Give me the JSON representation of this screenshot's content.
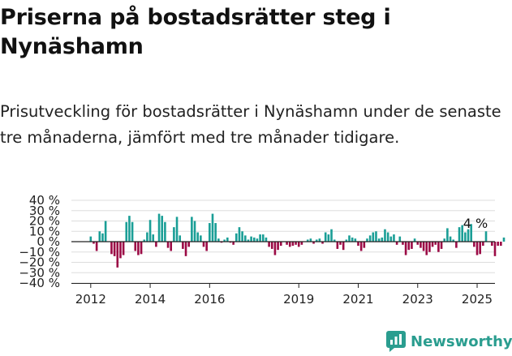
{
  "title": "Priserna på bostadsrätter steg i Nynäshamn",
  "subtitle": "Prisutveckling för bostadsrätter i Nynäshamn under de senaste tre månaderna, jämfört med tre månader tidigare.",
  "brand": "Newsworthy",
  "colors": {
    "positive": "#1a9e96",
    "negative": "#9b0a45",
    "grid": "#dddddd",
    "axis": "#222222"
  },
  "chart_data": {
    "type": "bar",
    "ylim": [
      -40,
      40
    ],
    "y_ticks": [
      -40,
      -30,
      -20,
      -10,
      0,
      10,
      20,
      30,
      40
    ],
    "y_tick_labels": [
      "−40 %",
      "−30 %",
      "−20 %",
      "−10 %",
      "0 %",
      "10 %",
      "20 %",
      "30 %",
      "40 %"
    ],
    "x_ticks": [
      2012,
      2014,
      2016,
      2019,
      2021,
      2023,
      2025
    ],
    "x_range": [
      2011.35,
      2025.6
    ],
    "annotation": {
      "text": "4 %",
      "x": 2025.0,
      "value": 4
    },
    "bars": [
      {
        "x": 2012.0,
        "v": 5
      },
      {
        "x": 2012.1,
        "v": -2
      },
      {
        "x": 2012.2,
        "v": -9
      },
      {
        "x": 2012.3,
        "v": 10
      },
      {
        "x": 2012.4,
        "v": 8
      },
      {
        "x": 2012.5,
        "v": 20
      },
      {
        "x": 2012.6,
        "v": 0
      },
      {
        "x": 2012.7,
        "v": -12
      },
      {
        "x": 2012.8,
        "v": -14
      },
      {
        "x": 2012.9,
        "v": -25
      },
      {
        "x": 2013.0,
        "v": -16
      },
      {
        "x": 2013.1,
        "v": -13
      },
      {
        "x": 2013.2,
        "v": 19
      },
      {
        "x": 2013.3,
        "v": 25
      },
      {
        "x": 2013.4,
        "v": 19
      },
      {
        "x": 2013.5,
        "v": -9
      },
      {
        "x": 2013.6,
        "v": -13
      },
      {
        "x": 2013.7,
        "v": -12
      },
      {
        "x": 2013.8,
        "v": 2
      },
      {
        "x": 2013.9,
        "v": 9
      },
      {
        "x": 2014.0,
        "v": 21
      },
      {
        "x": 2014.1,
        "v": 7
      },
      {
        "x": 2014.2,
        "v": -5
      },
      {
        "x": 2014.3,
        "v": 27
      },
      {
        "x": 2014.4,
        "v": 25
      },
      {
        "x": 2014.5,
        "v": 19
      },
      {
        "x": 2014.6,
        "v": -6
      },
      {
        "x": 2014.7,
        "v": -9
      },
      {
        "x": 2014.8,
        "v": 14
      },
      {
        "x": 2014.9,
        "v": 24
      },
      {
        "x": 2015.0,
        "v": 6
      },
      {
        "x": 2015.1,
        "v": -7
      },
      {
        "x": 2015.2,
        "v": -14
      },
      {
        "x": 2015.3,
        "v": -5
      },
      {
        "x": 2015.4,
        "v": 24
      },
      {
        "x": 2015.5,
        "v": 20
      },
      {
        "x": 2015.6,
        "v": 9
      },
      {
        "x": 2015.7,
        "v": 6
      },
      {
        "x": 2015.8,
        "v": -5
      },
      {
        "x": 2015.9,
        "v": -9
      },
      {
        "x": 2016.0,
        "v": 18
      },
      {
        "x": 2016.1,
        "v": 27
      },
      {
        "x": 2016.2,
        "v": 18
      },
      {
        "x": 2016.3,
        "v": 3
      },
      {
        "x": 2016.4,
        "v": -1
      },
      {
        "x": 2016.5,
        "v": 2
      },
      {
        "x": 2016.6,
        "v": 4
      },
      {
        "x": 2016.7,
        "v": -1
      },
      {
        "x": 2016.8,
        "v": -3
      },
      {
        "x": 2016.9,
        "v": 8
      },
      {
        "x": 2017.0,
        "v": 14
      },
      {
        "x": 2017.1,
        "v": 10
      },
      {
        "x": 2017.2,
        "v": 6
      },
      {
        "x": 2017.3,
        "v": 2
      },
      {
        "x": 2017.4,
        "v": 5
      },
      {
        "x": 2017.5,
        "v": 4
      },
      {
        "x": 2017.6,
        "v": 3
      },
      {
        "x": 2017.7,
        "v": 7
      },
      {
        "x": 2017.8,
        "v": 7
      },
      {
        "x": 2017.9,
        "v": 4
      },
      {
        "x": 2018.0,
        "v": -5
      },
      {
        "x": 2018.1,
        "v": -7
      },
      {
        "x": 2018.2,
        "v": -13
      },
      {
        "x": 2018.3,
        "v": -8
      },
      {
        "x": 2018.4,
        "v": -4
      },
      {
        "x": 2018.5,
        "v": 0
      },
      {
        "x": 2018.6,
        "v": -3
      },
      {
        "x": 2018.7,
        "v": -5
      },
      {
        "x": 2018.8,
        "v": -4
      },
      {
        "x": 2018.9,
        "v": -3
      },
      {
        "x": 2019.0,
        "v": -5
      },
      {
        "x": 2019.1,
        "v": -3
      },
      {
        "x": 2019.2,
        "v": 0
      },
      {
        "x": 2019.3,
        "v": 2
      },
      {
        "x": 2019.4,
        "v": 3
      },
      {
        "x": 2019.5,
        "v": -2
      },
      {
        "x": 2019.6,
        "v": 2
      },
      {
        "x": 2019.7,
        "v": 3
      },
      {
        "x": 2019.8,
        "v": -2
      },
      {
        "x": 2019.9,
        "v": 9
      },
      {
        "x": 2020.0,
        "v": 7
      },
      {
        "x": 2020.1,
        "v": 12
      },
      {
        "x": 2020.2,
        "v": 2
      },
      {
        "x": 2020.3,
        "v": -7
      },
      {
        "x": 2020.4,
        "v": -3
      },
      {
        "x": 2020.5,
        "v": -8
      },
      {
        "x": 2020.6,
        "v": 2
      },
      {
        "x": 2020.7,
        "v": 6
      },
      {
        "x": 2020.8,
        "v": 4
      },
      {
        "x": 2020.9,
        "v": 3
      },
      {
        "x": 2021.0,
        "v": -4
      },
      {
        "x": 2021.1,
        "v": -9
      },
      {
        "x": 2021.2,
        "v": -6
      },
      {
        "x": 2021.3,
        "v": 3
      },
      {
        "x": 2021.4,
        "v": 6
      },
      {
        "x": 2021.5,
        "v": 9
      },
      {
        "x": 2021.6,
        "v": 10
      },
      {
        "x": 2021.7,
        "v": 3
      },
      {
        "x": 2021.8,
        "v": 4
      },
      {
        "x": 2021.9,
        "v": 12
      },
      {
        "x": 2022.0,
        "v": 9
      },
      {
        "x": 2022.1,
        "v": 5
      },
      {
        "x": 2022.2,
        "v": 7
      },
      {
        "x": 2022.3,
        "v": -3
      },
      {
        "x": 2022.4,
        "v": 5
      },
      {
        "x": 2022.5,
        "v": -3
      },
      {
        "x": 2022.6,
        "v": -13
      },
      {
        "x": 2022.7,
        "v": -8
      },
      {
        "x": 2022.8,
        "v": -7
      },
      {
        "x": 2022.9,
        "v": 3
      },
      {
        "x": 2023.0,
        "v": -3
      },
      {
        "x": 2023.1,
        "v": -6
      },
      {
        "x": 2023.2,
        "v": -9
      },
      {
        "x": 2023.3,
        "v": -13
      },
      {
        "x": 2023.4,
        "v": -10
      },
      {
        "x": 2023.5,
        "v": -5
      },
      {
        "x": 2023.6,
        "v": -3
      },
      {
        "x": 2023.7,
        "v": -10
      },
      {
        "x": 2023.8,
        "v": -7
      },
      {
        "x": 2023.9,
        "v": 3
      },
      {
        "x": 2024.0,
        "v": 13
      },
      {
        "x": 2024.1,
        "v": 5
      },
      {
        "x": 2024.2,
        "v": 2
      },
      {
        "x": 2024.3,
        "v": -6
      },
      {
        "x": 2024.4,
        "v": 14
      },
      {
        "x": 2024.5,
        "v": 16
      },
      {
        "x": 2024.6,
        "v": 9
      },
      {
        "x": 2024.7,
        "v": 12
      },
      {
        "x": 2024.8,
        "v": 17
      },
      {
        "x": 2024.9,
        "v": -5
      },
      {
        "x": 2025.0,
        "v": -13
      },
      {
        "x": 2025.1,
        "v": -12
      },
      {
        "x": 2025.2,
        "v": -4
      },
      {
        "x": 2025.3,
        "v": 10
      },
      {
        "x": 2025.4,
        "v": 0
      },
      {
        "x": 2025.5,
        "v": -4
      },
      {
        "x": 2025.6,
        "v": -14
      },
      {
        "x": 2025.7,
        "v": -4
      },
      {
        "x": 2025.8,
        "v": -4
      },
      {
        "x": 2025.9,
        "v": 4
      }
    ]
  }
}
